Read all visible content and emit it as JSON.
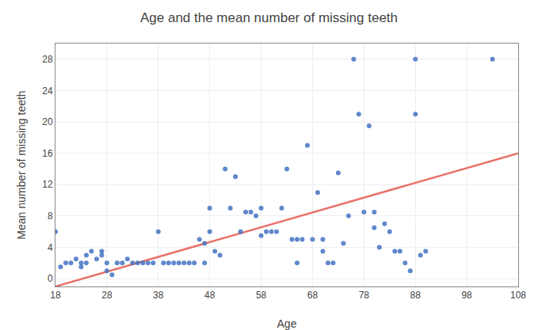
{
  "chart_data": {
    "type": "scatter",
    "title": "Age and the mean number of missing teeth",
    "xlabel": "Age",
    "ylabel": "Mean number of missing teeth",
    "xlim": [
      18,
      108
    ],
    "ylim": [
      -1,
      30
    ],
    "xticks": [
      18,
      28,
      38,
      48,
      58,
      68,
      78,
      88,
      98,
      108
    ],
    "yticks": [
      0,
      4,
      8,
      12,
      16,
      20,
      24,
      28
    ],
    "grid": true,
    "series": [
      {
        "type": "scatter",
        "color": "#4472C4",
        "x": [
          18,
          19,
          20,
          21,
          22,
          23,
          23,
          24,
          24,
          25,
          26,
          27,
          27,
          28,
          28,
          29,
          30,
          31,
          32,
          33,
          34,
          35,
          36,
          37,
          38,
          39,
          40,
          41,
          42,
          43,
          44,
          45,
          46,
          47,
          47,
          48,
          48,
          49,
          50,
          51,
          52,
          53,
          54,
          55,
          56,
          57,
          58,
          58,
          59,
          60,
          61,
          62,
          63,
          64,
          65,
          65,
          66,
          67,
          68,
          69,
          70,
          70,
          71,
          72,
          73,
          74,
          75,
          76,
          77,
          78,
          79,
          80,
          80,
          81,
          82,
          83,
          84,
          85,
          86,
          87,
          88,
          88,
          89,
          90,
          103
        ],
        "values": [
          6,
          1.5,
          2,
          2,
          2.5,
          2,
          1.5,
          2,
          3,
          3.5,
          2.5,
          3,
          3.5,
          1,
          2,
          0.5,
          2,
          2,
          2.5,
          2,
          2,
          2,
          2,
          2,
          6,
          2,
          2,
          2,
          2,
          2,
          2,
          2,
          5,
          4.5,
          2,
          6,
          9,
          3.5,
          3,
          14,
          9,
          13,
          6,
          8.5,
          8.5,
          8,
          9,
          5.5,
          6,
          6,
          6,
          9,
          14,
          5,
          5,
          2,
          5,
          17,
          5,
          11,
          5,
          3.5,
          2,
          2,
          13.5,
          4.5,
          8,
          28,
          21,
          8.5,
          19.5,
          8.5,
          6.5,
          4,
          7,
          6,
          3.5,
          3.5,
          2,
          1,
          28,
          21,
          3,
          3.5,
          28
        ]
      },
      {
        "type": "line",
        "color": "#E8716A",
        "x": [
          18,
          108
        ],
        "values": [
          -1.0,
          16.0
        ]
      }
    ]
  }
}
